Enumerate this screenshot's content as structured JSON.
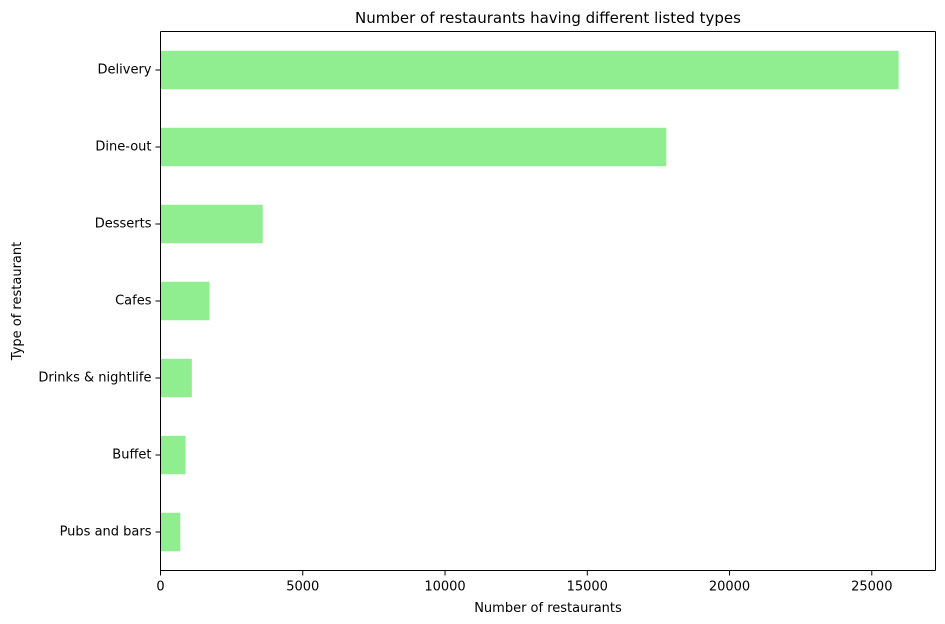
{
  "chart_data": {
    "type": "bar",
    "orientation": "horizontal",
    "title": "Number of restaurants having different listed types",
    "xlabel": "Number of restaurants",
    "ylabel": "Type of restaurant",
    "categories": [
      "Delivery",
      "Dine-out",
      "Desserts",
      "Cafes",
      "Drinks & nightlife",
      "Buffet",
      "Pubs and bars"
    ],
    "values": [
      25942,
      17779,
      3593,
      1723,
      1101,
      882,
      697
    ],
    "xlim": [
      0,
      27239
    ],
    "xticks": [
      0,
      5000,
      10000,
      15000,
      20000,
      25000
    ],
    "xtick_labels": [
      "0",
      "5000",
      "10000",
      "15000",
      "20000",
      "25000"
    ],
    "grid": false,
    "legend": "none",
    "bar_color": "#90ee90"
  }
}
